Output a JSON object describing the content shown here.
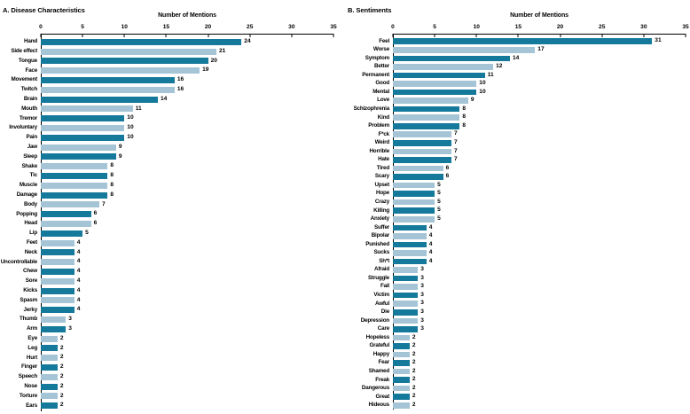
{
  "style": {
    "bar_color_dark": "#15799c",
    "bar_color_light": "#a5c4d6",
    "axis_color": "#000000",
    "background": "#ffffff"
  },
  "chart_data": [
    {
      "type": "bar",
      "orientation": "horizontal",
      "title": "A. Disease Characteristics",
      "xlabel": "Number of Mentions",
      "xlim": [
        0,
        35
      ],
      "xticks": [
        0,
        5,
        10,
        15,
        20,
        25,
        30,
        35
      ],
      "grid": false,
      "legend": "none",
      "bar_color_pattern": "alternating dark/light starting dark",
      "categories": [
        "Hand",
        "Side effect",
        "Tongue",
        "Face",
        "Movement",
        "Twitch",
        "Brain",
        "Mouth",
        "Tremor",
        "Involuntary",
        "Pain",
        "Jaw",
        "Sleep",
        "Shake",
        "Tic",
        "Muscle",
        "Damage",
        "Body",
        "Popping",
        "Head",
        "Lip",
        "Feet",
        "Neck",
        "Uncontrollable",
        "Chew",
        "Sore",
        "Kicks",
        "Spasm",
        "Jerky",
        "Thumb",
        "Arm",
        "Eye",
        "Leg",
        "Hurt",
        "Finger",
        "Speech",
        "Nose",
        "Torture",
        "Ears"
      ],
      "values": [
        24,
        21,
        20,
        19,
        16,
        16,
        14,
        11,
        10,
        10,
        10,
        9,
        9,
        8,
        8,
        8,
        8,
        7,
        6,
        6,
        5,
        4,
        4,
        4,
        4,
        4,
        4,
        4,
        4,
        3,
        3,
        2,
        2,
        2,
        2,
        2,
        2,
        2,
        2
      ]
    },
    {
      "type": "bar",
      "orientation": "horizontal",
      "title": "B. Sentiments",
      "xlabel": "Number of Mentions",
      "xlim": [
        0,
        35
      ],
      "xticks": [
        0,
        5,
        10,
        15,
        20,
        25,
        30,
        35
      ],
      "grid": false,
      "legend": "none",
      "bar_color_pattern": "alternating dark/light starting dark",
      "categories": [
        "Feel",
        "Worse",
        "Symptom",
        "Better",
        "Permanent",
        "Good",
        "Mental",
        "Love",
        "Schizophrenia",
        "Kind",
        "Problem",
        "F*ck",
        "Weird",
        "Horrible",
        "Hate",
        "Tired",
        "Scary",
        "Upset",
        "Hope",
        "Crazy",
        "Killing",
        "Anxiety",
        "Suffer",
        "Bipolar",
        "Punished",
        "Sucks",
        "Sh*t",
        "Afraid",
        "Struggle",
        "Fail",
        "Victim",
        "Awful",
        "Die",
        "Depression",
        "Care",
        "Hopeless",
        "Grateful",
        "Happy",
        "Fear",
        "Shamed",
        "Freak",
        "Dangerous",
        "Great",
        "Hideous"
      ],
      "values": [
        31,
        17,
        14,
        12,
        11,
        10,
        10,
        9,
        8,
        8,
        8,
        7,
        7,
        7,
        7,
        6,
        6,
        5,
        5,
        5,
        5,
        5,
        4,
        4,
        4,
        4,
        4,
        3,
        3,
        3,
        3,
        3,
        3,
        3,
        3,
        2,
        2,
        2,
        2,
        2,
        2,
        2,
        2,
        2
      ]
    }
  ]
}
